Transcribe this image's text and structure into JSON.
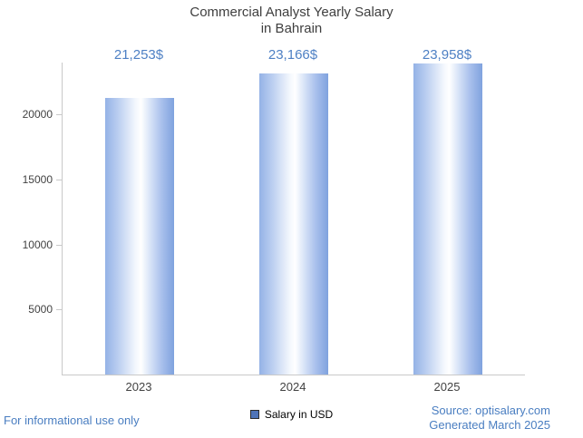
{
  "title_lines": "Commercial Analyst Yearly Salary\nin Bahrain",
  "chart_data": {
    "type": "bar",
    "title": "Commercial Analyst Yearly Salary in Bahrain",
    "categories": [
      "2023",
      "2024",
      "2025"
    ],
    "values": [
      21253,
      23166,
      23958
    ],
    "value_labels": [
      "21,253$",
      "23,166$",
      "23,958$"
    ],
    "xlabel": "",
    "ylabel": "",
    "ylim": [
      0,
      24000
    ],
    "yticks": [
      5000,
      10000,
      15000,
      20000
    ],
    "grid": false,
    "legend": "Salary in USD",
    "legend_position": "bottom"
  },
  "footer": {
    "left": "For informational use only",
    "source": "Source: optisalary.com",
    "generated": "Generated March 2025"
  },
  "colors": {
    "title_text": "#3f3f3f",
    "axis_line": "#c9c9c9",
    "axis_text": "#424242",
    "value_label_text": "#4e80c4",
    "footer_link_text": "#4a7ec1",
    "bar_gradient_left": "#94b2e6",
    "bar_gradient_center": "#ffffff",
    "bar_gradient_right": "#7fa2de",
    "legend_swatch": "#4f74b8"
  }
}
